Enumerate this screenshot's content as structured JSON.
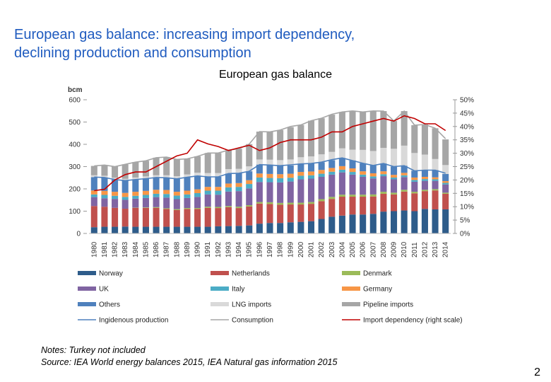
{
  "slide": {
    "title_line1": "European gas balance: increasing import dependency,",
    "title_line2": "declining production and consumption",
    "notes_line1": "Notes: Turkey not included",
    "notes_line2": "Source: IEA World energy balances 2015, IEA Natural gas information 2015",
    "page_number": "2"
  },
  "chart_data": {
    "type": "bar",
    "title": "European gas balance",
    "ylabel": "bcm",
    "ylabel_right": "",
    "ylim": [
      0,
      600
    ],
    "yticks": [
      0,
      100,
      200,
      300,
      400,
      500,
      600
    ],
    "ylim_right": [
      0,
      50
    ],
    "yticks_right": [
      "0%",
      "5%",
      "10%",
      "15%",
      "20%",
      "25%",
      "30%",
      "35%",
      "40%",
      "45%",
      "50%"
    ],
    "categories": [
      "1980",
      "1981",
      "1982",
      "1983",
      "1984",
      "1985",
      "1986",
      "1987",
      "1988",
      "1989",
      "1990",
      "1991",
      "1992",
      "1993",
      "1994",
      "1995",
      "1996",
      "1997",
      "1998",
      "1999",
      "2000",
      "2001",
      "2002",
      "2003",
      "2004",
      "2005",
      "2006",
      "2007",
      "2008",
      "2009",
      "2010",
      "2011",
      "2012",
      "2013",
      "2014"
    ],
    "series": [
      {
        "name": "Norway",
        "color": "#2e5c8a",
        "values": [
          28,
          30,
          30,
          31,
          30,
          30,
          30,
          30,
          30,
          30,
          30,
          30,
          32,
          33,
          34,
          36,
          44,
          47,
          47,
          50,
          52,
          55,
          65,
          75,
          80,
          85,
          85,
          88,
          98,
          100,
          103,
          100,
          110,
          108,
          108
        ]
      },
      {
        "name": "Netherlands",
        "color": "#c0504d",
        "values": [
          95,
          90,
          85,
          80,
          85,
          85,
          85,
          80,
          75,
          80,
          80,
          85,
          82,
          85,
          80,
          85,
          90,
          85,
          82,
          80,
          78,
          78,
          80,
          80,
          85,
          80,
          80,
          78,
          80,
          75,
          85,
          80,
          80,
          85,
          70
        ]
      },
      {
        "name": "Denmark",
        "color": "#9bbb59",
        "values": [
          0,
          0,
          0,
          0,
          1,
          2,
          3,
          3,
          4,
          4,
          4,
          5,
          5,
          5,
          6,
          6,
          7,
          8,
          8,
          8,
          8,
          8,
          9,
          9,
          9,
          9,
          9,
          9,
          9,
          8,
          8,
          7,
          6,
          6,
          5
        ]
      },
      {
        "name": "UK",
        "color": "#8064a2",
        "values": [
          40,
          38,
          40,
          40,
          40,
          42,
          45,
          48,
          45,
          45,
          50,
          55,
          55,
          65,
          70,
          75,
          90,
          90,
          92,
          95,
          105,
          105,
          100,
          100,
          100,
          90,
          80,
          72,
          70,
          60,
          57,
          45,
          40,
          37,
          37
        ]
      },
      {
        "name": "Italy",
        "color": "#4bacc6",
        "values": [
          12,
          15,
          14,
          13,
          13,
          14,
          15,
          16,
          16,
          16,
          17,
          17,
          18,
          19,
          19,
          20,
          20,
          19,
          19,
          17,
          16,
          15,
          14,
          13,
          12,
          12,
          10,
          9,
          9,
          8,
          8,
          8,
          8,
          7,
          7
        ]
      },
      {
        "name": "Germany",
        "color": "#f79646",
        "values": [
          18,
          18,
          18,
          18,
          18,
          18,
          18,
          18,
          17,
          17,
          17,
          17,
          17,
          17,
          17,
          17,
          18,
          18,
          18,
          18,
          17,
          17,
          17,
          17,
          16,
          16,
          15,
          14,
          13,
          12,
          11,
          11,
          10,
          9,
          8
        ]
      },
      {
        "name": "Others",
        "color": "#4f81bd",
        "values": [
          60,
          60,
          55,
          55,
          55,
          55,
          55,
          55,
          58,
          60,
          60,
          45,
          45,
          45,
          44,
          40,
          40,
          40,
          38,
          37,
          36,
          36,
          35,
          35,
          37,
          36,
          36,
          35,
          35,
          37,
          32,
          30,
          30,
          32,
          32
        ]
      },
      {
        "name": "LNG imports",
        "color": "#d9d9d9",
        "values": [
          8,
          8,
          8,
          8,
          9,
          10,
          10,
          11,
          12,
          13,
          15,
          17,
          17,
          20,
          20,
          22,
          23,
          24,
          25,
          27,
          30,
          32,
          35,
          37,
          43,
          48,
          60,
          65,
          70,
          80,
          90,
          80,
          70,
          50,
          40
        ]
      },
      {
        "name": "Pipeline imports",
        "color": "#a6a6a6",
        "values": [
          42,
          48,
          50,
          65,
          69,
          70,
          79,
          82,
          75,
          70,
          73,
          90,
          90,
          85,
          90,
          100,
          125,
          125,
          135,
          145,
          145,
          160,
          162,
          167,
          163,
          175,
          170,
          180,
          165,
          125,
          155,
          125,
          135,
          138,
          115
        ]
      }
    ],
    "lines": [
      {
        "name": "Ingidenous production",
        "color": "#4f81bd",
        "values": [
          253,
          251,
          242,
          237,
          242,
          246,
          251,
          250,
          245,
          252,
          258,
          254,
          254,
          269,
          270,
          279,
          309,
          307,
          304,
          308,
          312,
          314,
          320,
          331,
          339,
          327,
          315,
          305,
          314,
          300,
          304,
          281,
          284,
          284,
          270
        ]
      },
      {
        "name": "Consumption",
        "color": "#a6a6a6",
        "values": [
          303,
          307,
          300,
          310,
          320,
          326,
          340,
          343,
          332,
          335,
          346,
          361,
          361,
          374,
          380,
          401,
          457,
          456,
          464,
          480,
          487,
          506,
          517,
          535,
          545,
          550,
          545,
          550,
          549,
          505,
          549,
          486,
          489,
          472,
          425
        ]
      },
      {
        "name": "Import dependency (right scale)",
        "color": "#c00000",
        "axis": "right",
        "values": [
          16.0,
          16.5,
          20.0,
          22.0,
          23.0,
          23.0,
          25.0,
          27.0,
          29.0,
          30.0,
          35.0,
          33.5,
          32.5,
          31.0,
          32.0,
          33.0,
          31.0,
          32.0,
          34.0,
          35.0,
          35.0,
          35.0,
          36.0,
          38.0,
          38.0,
          40.0,
          41.0,
          42.0,
          43.0,
          42.0,
          44.0,
          43.0,
          41.0,
          41.0,
          38.5
        ]
      }
    ],
    "legend": [
      "Norway",
      "Netherlands",
      "Denmark",
      "UK",
      "Italy",
      "Germany",
      "Others",
      "LNG imports",
      "Pipeline imports",
      "Ingidenous production",
      "Consumption",
      "Import dependency (right scale)"
    ],
    "legend_position": "bottom"
  }
}
